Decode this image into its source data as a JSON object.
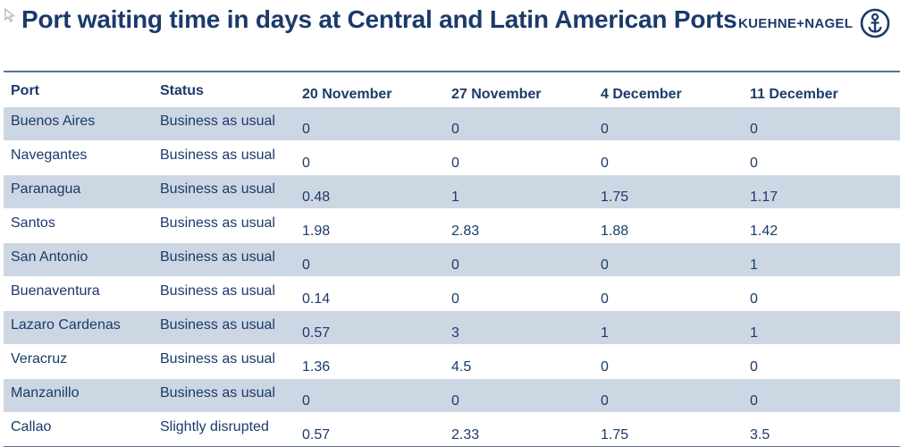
{
  "header": {
    "title": "Port waiting time in days at Central and Latin American Ports",
    "logo_text": "KUEHNE+NAGEL",
    "logo_icon": "anchor-icon"
  },
  "colors": {
    "title": "#1b3a6b",
    "row_shade": "#cdd7e3",
    "rule": "#5b7194"
  },
  "table": {
    "columns": [
      "Port",
      "Status",
      "20 November",
      "27 November",
      "4 December",
      "11 December"
    ],
    "rows": [
      {
        "port": "Buenos Aires",
        "status": "Business as usual",
        "values": [
          "0",
          "0",
          "0",
          "0"
        ]
      },
      {
        "port": "Navegantes",
        "status": "Business as usual",
        "values": [
          "0",
          "0",
          "0",
          "0"
        ]
      },
      {
        "port": "Paranagua",
        "status": "Business as usual",
        "values": [
          "0.48",
          "1",
          "1.75",
          "1.17"
        ]
      },
      {
        "port": "Santos",
        "status": "Business as usual",
        "values": [
          "1.98",
          "2.83",
          "1.88",
          "1.42"
        ]
      },
      {
        "port": "San Antonio",
        "status": "Business as usual",
        "values": [
          "0",
          "0",
          "0",
          "1"
        ]
      },
      {
        "port": "Buenaventura",
        "status": "Business as usual",
        "values": [
          "0.14",
          "0",
          "0",
          "0"
        ]
      },
      {
        "port": "Lazaro Cardenas",
        "status": "Business as usual",
        "values": [
          "0.57",
          "3",
          "1",
          "1"
        ]
      },
      {
        "port": "Veracruz",
        "status": "Business as usual",
        "values": [
          "1.36",
          "4.5",
          "0",
          "0"
        ]
      },
      {
        "port": "Manzanillo",
        "status": "Business as usual",
        "values": [
          "0",
          "0",
          "0",
          "0"
        ]
      },
      {
        "port": "Callao",
        "status": "Slightly disrupted",
        "values": [
          "0.57",
          "2.33",
          "1.75",
          "3.5"
        ]
      }
    ]
  }
}
